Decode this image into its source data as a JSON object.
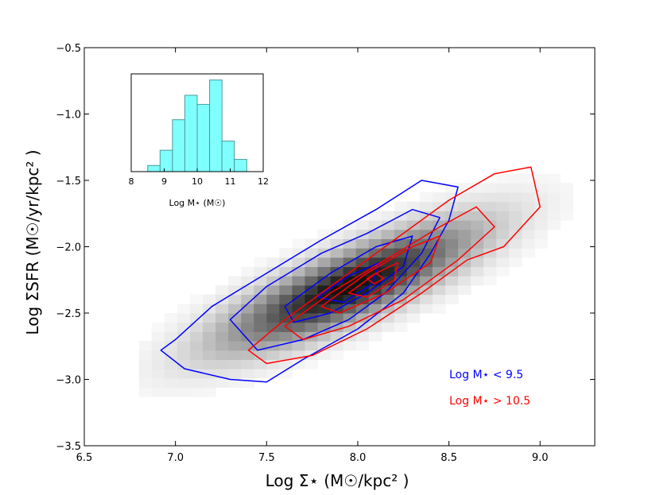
{
  "chart_data": [
    {
      "type": "heatmap",
      "xlabel": "Log Σ⋆ (M☉/kpc² )",
      "ylabel": "Log ΣSFR (M☉/yr/kpc² )",
      "xlim": [
        6.5,
        9.3
      ],
      "ylim": [
        -3.5,
        -0.5
      ],
      "xticks": [
        "6.5",
        "7.0",
        "7.5",
        "8.0",
        "8.5",
        "9.0"
      ],
      "yticks": [
        "−0.5",
        "−1.0",
        "−1.5",
        "−2.0",
        "−2.5",
        "−3.0",
        "−3.5"
      ],
      "density_model": {
        "center_x": 7.95,
        "center_y": -2.3,
        "slope": 0.62,
        "sigma_major": 0.55,
        "sigma_minor": 0.16
      },
      "series": [
        {
          "name": "Log M⋆ < 9.5",
          "color": "#0000ff",
          "contours": [
            [
              [
                7.0,
                -2.7
              ],
              [
                7.2,
                -2.45
              ],
              [
                7.5,
                -2.2
              ],
              [
                7.8,
                -1.95
              ],
              [
                8.1,
                -1.72
              ],
              [
                8.35,
                -1.5
              ],
              [
                8.55,
                -1.55
              ],
              [
                8.5,
                -1.8
              ],
              [
                8.4,
                -2.05
              ],
              [
                8.25,
                -2.35
              ],
              [
                8.0,
                -2.62
              ],
              [
                7.7,
                -2.85
              ],
              [
                7.5,
                -3.02
              ],
              [
                7.3,
                -3.0
              ],
              [
                7.05,
                -2.92
              ],
              [
                6.92,
                -2.78
              ]
            ],
            [
              [
                7.3,
                -2.55
              ],
              [
                7.5,
                -2.3
              ],
              [
                7.8,
                -2.05
              ],
              [
                8.05,
                -1.9
              ],
              [
                8.3,
                -1.72
              ],
              [
                8.45,
                -1.78
              ],
              [
                8.35,
                -2.05
              ],
              [
                8.15,
                -2.35
              ],
              [
                7.95,
                -2.55
              ],
              [
                7.7,
                -2.7
              ],
              [
                7.45,
                -2.78
              ]
            ],
            [
              [
                7.6,
                -2.45
              ],
              [
                7.85,
                -2.2
              ],
              [
                8.1,
                -2.0
              ],
              [
                8.3,
                -1.92
              ],
              [
                8.25,
                -2.15
              ],
              [
                8.05,
                -2.35
              ],
              [
                7.85,
                -2.5
              ],
              [
                7.65,
                -2.57
              ]
            ],
            [
              [
                7.78,
                -2.38
              ],
              [
                7.95,
                -2.22
              ],
              [
                8.12,
                -2.12
              ],
              [
                8.08,
                -2.28
              ],
              [
                7.92,
                -2.42
              ]
            ]
          ]
        },
        {
          "name": "Log M⋆ > 10.5",
          "color": "#ff0000",
          "contours": [
            [
              [
                7.4,
                -2.78
              ],
              [
                7.6,
                -2.55
              ],
              [
                7.9,
                -2.25
              ],
              [
                8.2,
                -1.95
              ],
              [
                8.5,
                -1.65
              ],
              [
                8.75,
                -1.45
              ],
              [
                8.95,
                -1.4
              ],
              [
                9.0,
                -1.7
              ],
              [
                8.8,
                -2.0
              ],
              [
                8.6,
                -2.1
              ],
              [
                8.35,
                -2.35
              ],
              [
                8.05,
                -2.62
              ],
              [
                7.75,
                -2.82
              ],
              [
                7.5,
                -2.88
              ]
            ],
            [
              [
                7.6,
                -2.6
              ],
              [
                7.85,
                -2.35
              ],
              [
                8.15,
                -2.1
              ],
              [
                8.45,
                -1.85
              ],
              [
                8.65,
                -1.7
              ],
              [
                8.75,
                -1.85
              ],
              [
                8.55,
                -2.1
              ],
              [
                8.25,
                -2.4
              ],
              [
                7.95,
                -2.6
              ],
              [
                7.7,
                -2.7
              ]
            ],
            [
              [
                7.8,
                -2.45
              ],
              [
                8.05,
                -2.2
              ],
              [
                8.3,
                -2.0
              ],
              [
                8.45,
                -1.92
              ],
              [
                8.4,
                -2.12
              ],
              [
                8.15,
                -2.35
              ],
              [
                7.9,
                -2.5
              ]
            ],
            [
              [
                7.95,
                -2.35
              ],
              [
                8.1,
                -2.2
              ],
              [
                8.22,
                -2.12
              ],
              [
                8.2,
                -2.25
              ],
              [
                8.05,
                -2.38
              ]
            ],
            [
              [
                8.05,
                -2.24
              ],
              [
                8.1,
                -2.2
              ],
              [
                8.14,
                -2.24
              ],
              [
                8.09,
                -2.28
              ]
            ]
          ]
        }
      ],
      "legend": {
        "position": "lower-right"
      }
    },
    {
      "type": "bar",
      "xlabel": "Log M⋆ (M☉)",
      "xlim": [
        8,
        12
      ],
      "xticks": [
        "8",
        "9",
        "10",
        "11",
        "12"
      ],
      "bin_edges": [
        8.5,
        8.875,
        9.25,
        9.625,
        10.0,
        10.375,
        10.75,
        11.125,
        11.5
      ],
      "values": [
        2,
        7,
        17,
        25,
        22,
        30,
        10,
        4
      ],
      "ylim": [
        0,
        32
      ],
      "fill": "#80ffff"
    }
  ]
}
